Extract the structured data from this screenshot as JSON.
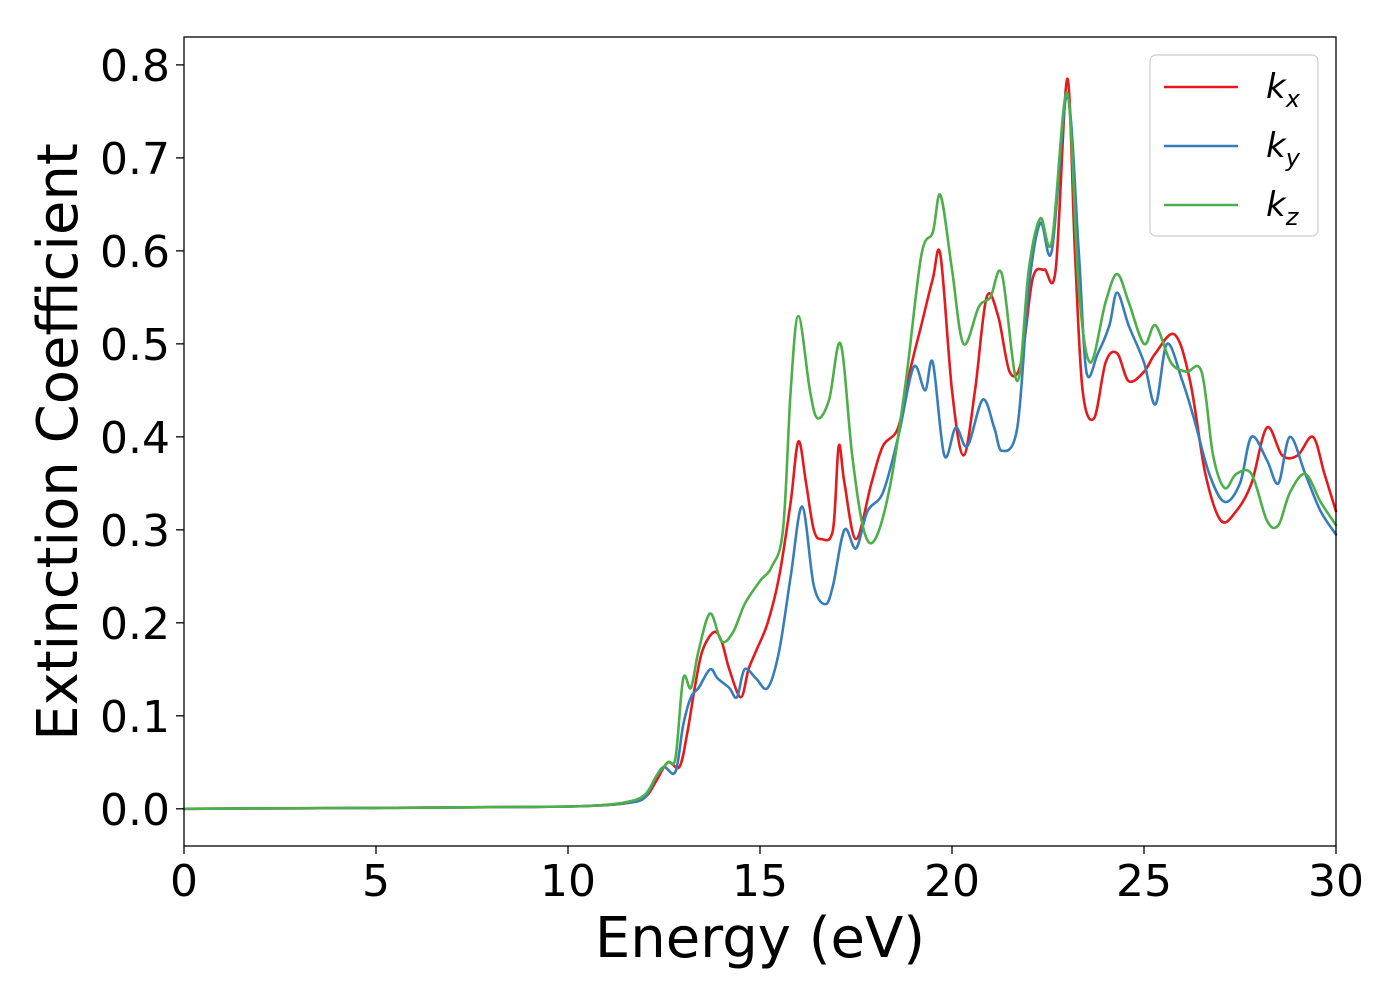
{
  "chart_data": {
    "type": "line",
    "title": "",
    "xlabel": "Energy (eV)",
    "ylabel": "Extinction Coefficient",
    "xlim": [
      0,
      30
    ],
    "ylim": [
      -0.04,
      0.83
    ],
    "xticks": [
      0,
      5,
      10,
      15,
      20,
      25,
      30
    ],
    "xtick_labels": [
      "0",
      "5",
      "10",
      "15",
      "20",
      "25",
      "30"
    ],
    "yticks": [
      0.0,
      0.1,
      0.2,
      0.3,
      0.4,
      0.5,
      0.6,
      0.7,
      0.8
    ],
    "ytick_labels": [
      "0.0",
      "0.1",
      "0.2",
      "0.3",
      "0.4",
      "0.5",
      "0.6",
      "0.7",
      "0.8"
    ],
    "grid": false,
    "legend_position": "top-right",
    "series": [
      {
        "name": "kx",
        "base": "k",
        "sub": "x",
        "color": "#e41a1c",
        "points": [
          [
            0,
            0.0
          ],
          [
            5,
            0.001
          ],
          [
            9,
            0.002
          ],
          [
            10.5,
            0.003
          ],
          [
            11.5,
            0.006
          ],
          [
            12.0,
            0.012
          ],
          [
            12.3,
            0.03
          ],
          [
            12.6,
            0.05
          ],
          [
            12.9,
            0.045
          ],
          [
            13.1,
            0.08
          ],
          [
            13.3,
            0.13
          ],
          [
            13.5,
            0.17
          ],
          [
            13.8,
            0.19
          ],
          [
            14.0,
            0.18
          ],
          [
            14.2,
            0.15
          ],
          [
            14.5,
            0.12
          ],
          [
            14.7,
            0.15
          ],
          [
            14.9,
            0.17
          ],
          [
            15.2,
            0.2
          ],
          [
            15.5,
            0.25
          ],
          [
            15.8,
            0.33
          ],
          [
            16.0,
            0.395
          ],
          [
            16.2,
            0.35
          ],
          [
            16.4,
            0.3
          ],
          [
            16.6,
            0.29
          ],
          [
            16.9,
            0.3
          ],
          [
            17.05,
            0.39
          ],
          [
            17.2,
            0.35
          ],
          [
            17.5,
            0.29
          ],
          [
            17.9,
            0.35
          ],
          [
            18.2,
            0.39
          ],
          [
            18.6,
            0.41
          ],
          [
            18.9,
            0.47
          ],
          [
            19.2,
            0.52
          ],
          [
            19.5,
            0.57
          ],
          [
            19.7,
            0.595
          ],
          [
            20.0,
            0.45
          ],
          [
            20.3,
            0.38
          ],
          [
            20.6,
            0.45
          ],
          [
            20.9,
            0.55
          ],
          [
            21.2,
            0.53
          ],
          [
            21.5,
            0.47
          ],
          [
            21.8,
            0.48
          ],
          [
            22.1,
            0.57
          ],
          [
            22.4,
            0.58
          ],
          [
            22.7,
            0.58
          ],
          [
            23.0,
            0.785
          ],
          [
            23.2,
            0.6
          ],
          [
            23.4,
            0.45
          ],
          [
            23.7,
            0.42
          ],
          [
            24.0,
            0.48
          ],
          [
            24.3,
            0.49
          ],
          [
            24.6,
            0.46
          ],
          [
            25.0,
            0.47
          ],
          [
            25.3,
            0.49
          ],
          [
            25.8,
            0.51
          ],
          [
            26.2,
            0.46
          ],
          [
            26.6,
            0.36
          ],
          [
            27.0,
            0.31
          ],
          [
            27.4,
            0.32
          ],
          [
            27.8,
            0.35
          ],
          [
            28.2,
            0.41
          ],
          [
            28.6,
            0.38
          ],
          [
            29.0,
            0.38
          ],
          [
            29.4,
            0.4
          ],
          [
            29.7,
            0.36
          ],
          [
            30.0,
            0.32
          ]
        ]
      },
      {
        "name": "ky",
        "base": "k",
        "sub": "y",
        "color": "#377eb8",
        "points": [
          [
            0,
            0.0
          ],
          [
            5,
            0.001
          ],
          [
            9,
            0.002
          ],
          [
            10.5,
            0.003
          ],
          [
            11.5,
            0.006
          ],
          [
            12.0,
            0.012
          ],
          [
            12.3,
            0.035
          ],
          [
            12.5,
            0.045
          ],
          [
            12.8,
            0.04
          ],
          [
            13.0,
            0.09
          ],
          [
            13.2,
            0.12
          ],
          [
            13.4,
            0.13
          ],
          [
            13.7,
            0.15
          ],
          [
            13.9,
            0.14
          ],
          [
            14.2,
            0.13
          ],
          [
            14.4,
            0.12
          ],
          [
            14.6,
            0.15
          ],
          [
            14.9,
            0.14
          ],
          [
            15.2,
            0.13
          ],
          [
            15.5,
            0.17
          ],
          [
            15.8,
            0.25
          ],
          [
            16.1,
            0.325
          ],
          [
            16.4,
            0.24
          ],
          [
            16.7,
            0.22
          ],
          [
            16.9,
            0.24
          ],
          [
            17.2,
            0.3
          ],
          [
            17.5,
            0.28
          ],
          [
            17.8,
            0.32
          ],
          [
            18.2,
            0.34
          ],
          [
            18.6,
            0.4
          ],
          [
            19.0,
            0.475
          ],
          [
            19.3,
            0.45
          ],
          [
            19.5,
            0.48
          ],
          [
            19.8,
            0.38
          ],
          [
            20.1,
            0.41
          ],
          [
            20.4,
            0.39
          ],
          [
            20.8,
            0.44
          ],
          [
            21.1,
            0.41
          ],
          [
            21.3,
            0.385
          ],
          [
            21.7,
            0.41
          ],
          [
            22.0,
            0.56
          ],
          [
            22.3,
            0.63
          ],
          [
            22.6,
            0.6
          ],
          [
            23.0,
            0.765
          ],
          [
            23.3,
            0.6
          ],
          [
            23.5,
            0.47
          ],
          [
            23.8,
            0.49
          ],
          [
            24.1,
            0.52
          ],
          [
            24.3,
            0.555
          ],
          [
            24.6,
            0.52
          ],
          [
            25.0,
            0.48
          ],
          [
            25.3,
            0.435
          ],
          [
            25.6,
            0.5
          ],
          [
            26.0,
            0.46
          ],
          [
            26.3,
            0.42
          ],
          [
            26.7,
            0.36
          ],
          [
            27.1,
            0.33
          ],
          [
            27.5,
            0.35
          ],
          [
            27.8,
            0.4
          ],
          [
            28.2,
            0.375
          ],
          [
            28.5,
            0.35
          ],
          [
            28.8,
            0.4
          ],
          [
            29.2,
            0.36
          ],
          [
            29.6,
            0.32
          ],
          [
            30.0,
            0.295
          ]
        ]
      },
      {
        "name": "kz",
        "base": "k",
        "sub": "z",
        "color": "#4daf4a",
        "points": [
          [
            0,
            0.0
          ],
          [
            5,
            0.001
          ],
          [
            9,
            0.002
          ],
          [
            10.5,
            0.003
          ],
          [
            11.5,
            0.007
          ],
          [
            12.0,
            0.015
          ],
          [
            12.3,
            0.035
          ],
          [
            12.6,
            0.05
          ],
          [
            12.8,
            0.055
          ],
          [
            13.0,
            0.14
          ],
          [
            13.2,
            0.13
          ],
          [
            13.4,
            0.17
          ],
          [
            13.7,
            0.21
          ],
          [
            14.0,
            0.18
          ],
          [
            14.3,
            0.19
          ],
          [
            14.6,
            0.22
          ],
          [
            15.0,
            0.245
          ],
          [
            15.3,
            0.26
          ],
          [
            15.6,
            0.3
          ],
          [
            15.8,
            0.45
          ],
          [
            16.0,
            0.53
          ],
          [
            16.3,
            0.45
          ],
          [
            16.5,
            0.42
          ],
          [
            16.8,
            0.44
          ],
          [
            17.1,
            0.5
          ],
          [
            17.4,
            0.38
          ],
          [
            17.7,
            0.3
          ],
          [
            18.0,
            0.29
          ],
          [
            18.4,
            0.35
          ],
          [
            18.8,
            0.46
          ],
          [
            19.2,
            0.595
          ],
          [
            19.5,
            0.62
          ],
          [
            19.7,
            0.66
          ],
          [
            20.0,
            0.58
          ],
          [
            20.3,
            0.5
          ],
          [
            20.7,
            0.54
          ],
          [
            21.0,
            0.55
          ],
          [
            21.3,
            0.575
          ],
          [
            21.7,
            0.46
          ],
          [
            22.0,
            0.58
          ],
          [
            22.3,
            0.635
          ],
          [
            22.6,
            0.61
          ],
          [
            23.0,
            0.77
          ],
          [
            23.3,
            0.56
          ],
          [
            23.6,
            0.48
          ],
          [
            24.0,
            0.545
          ],
          [
            24.3,
            0.575
          ],
          [
            24.6,
            0.545
          ],
          [
            25.0,
            0.5
          ],
          [
            25.3,
            0.52
          ],
          [
            25.7,
            0.48
          ],
          [
            26.1,
            0.47
          ],
          [
            26.5,
            0.47
          ],
          [
            26.8,
            0.38
          ],
          [
            27.1,
            0.345
          ],
          [
            27.4,
            0.36
          ],
          [
            27.8,
            0.36
          ],
          [
            28.2,
            0.31
          ],
          [
            28.5,
            0.305
          ],
          [
            28.8,
            0.34
          ],
          [
            29.2,
            0.36
          ],
          [
            29.6,
            0.33
          ],
          [
            30.0,
            0.305
          ]
        ]
      }
    ]
  }
}
